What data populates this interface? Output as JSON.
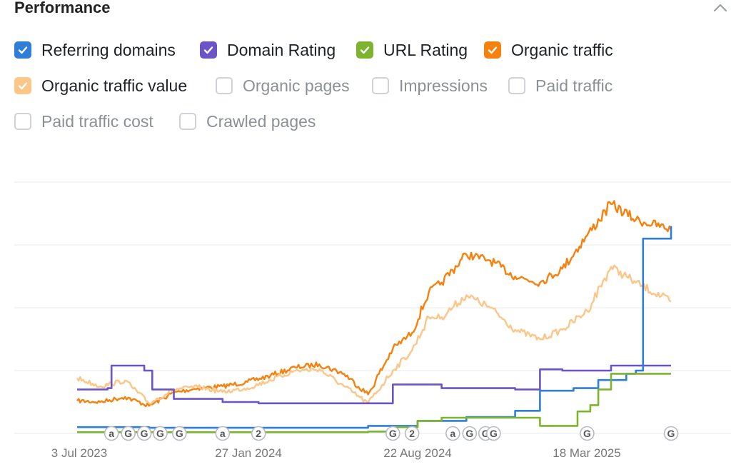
{
  "header": {
    "title": "Performance",
    "collapse_icon": "chevron-up-icon"
  },
  "legend": [
    {
      "label": "Referring domains",
      "checked": true,
      "color": "#2f7ed8"
    },
    {
      "label": "Domain Rating",
      "checked": true,
      "color": "#6b54c6"
    },
    {
      "label": "URL Rating",
      "checked": true,
      "color": "#7cb32f"
    },
    {
      "label": "Organic traffic",
      "checked": true,
      "color": "#f5820f"
    },
    {
      "label": "Organic traffic value",
      "checked": true,
      "color": "#fcc689"
    },
    {
      "label": "Organic pages",
      "checked": false,
      "color": "#cfd3d8"
    },
    {
      "label": "Impressions",
      "checked": false,
      "color": "#cfd3d8"
    },
    {
      "label": "Paid traffic",
      "checked": false,
      "color": "#cfd3d8"
    },
    {
      "label": "Paid traffic cost",
      "checked": false,
      "color": "#cfd3d8"
    },
    {
      "label": "Crawled pages",
      "checked": false,
      "color": "#cfd3d8"
    }
  ],
  "chart_data": {
    "type": "line",
    "grid": true,
    "x_tick_labels": [
      "3 Jul 2023",
      "27 Jan 2024",
      "22 Aug 2024",
      "18 Mar 2025"
    ],
    "x_range": [
      "2023-07-03",
      "2025-07-15"
    ],
    "y_range": [
      0,
      400
    ],
    "series": [
      {
        "name": "Organic traffic",
        "color": "#f5820f",
        "x": [
          "2023-07-03",
          "2023-08-01",
          "2023-09-01",
          "2023-10-01",
          "2023-11-01",
          "2023-12-01",
          "2024-01-01",
          "2024-02-01",
          "2024-03-01",
          "2024-04-01",
          "2024-05-01",
          "2024-06-01",
          "2024-07-01",
          "2024-08-01",
          "2024-08-25",
          "2024-09-15",
          "2024-10-01",
          "2024-11-01",
          "2024-12-01",
          "2025-01-01",
          "2025-02-01",
          "2025-03-01",
          "2025-04-01",
          "2025-05-01",
          "2025-06-01",
          "2025-07-15"
        ],
        "values": [
          52,
          50,
          58,
          44,
          65,
          72,
          75,
          82,
          92,
          105,
          110,
          95,
          62,
          135,
          160,
          225,
          240,
          285,
          275,
          250,
          240,
          262,
          315,
          365,
          340,
          325
        ]
      },
      {
        "name": "Organic traffic value",
        "color": "#fcc689",
        "x": [
          "2023-07-03",
          "2023-08-01",
          "2023-09-01",
          "2023-10-01",
          "2023-11-01",
          "2023-12-01",
          "2024-01-01",
          "2024-02-01",
          "2024-03-01",
          "2024-04-01",
          "2024-05-01",
          "2024-06-01",
          "2024-07-01",
          "2024-08-01",
          "2024-08-25",
          "2024-09-15",
          "2024-10-01",
          "2024-11-01",
          "2024-12-01",
          "2025-01-01",
          "2025-02-01",
          "2025-03-01",
          "2025-04-01",
          "2025-05-01",
          "2025-06-01",
          "2025-07-15"
        ],
        "values": [
          88,
          75,
          84,
          48,
          70,
          74,
          66,
          72,
          85,
          100,
          102,
          75,
          48,
          100,
          132,
          185,
          185,
          220,
          200,
          165,
          150,
          165,
          195,
          265,
          240,
          210
        ]
      },
      {
        "name": "Domain Rating",
        "color": "#6b54c6",
        "x": [
          "2023-07-03",
          "2023-08-10",
          "2023-08-15",
          "2023-09-25",
          "2023-10-05",
          "2023-11-01",
          "2024-01-01",
          "2024-02-15",
          "2024-05-01",
          "2024-07-25",
          "2024-08-01",
          "2024-10-01",
          "2025-01-01",
          "2025-02-01",
          "2025-03-01",
          "2025-05-01",
          "2025-07-15"
        ],
        "values": [
          70,
          72,
          108,
          100,
          70,
          55,
          50,
          48,
          48,
          48,
          78,
          72,
          70,
          102,
          100,
          108,
          108
        ]
      },
      {
        "name": "Referring domains",
        "color": "#2f7ed8",
        "x": [
          "2023-07-03",
          "2023-10-01",
          "2024-01-01",
          "2024-04-01",
          "2024-07-01",
          "2024-09-01",
          "2024-11-01",
          "2025-01-01",
          "2025-02-01",
          "2025-03-15",
          "2025-04-15",
          "2025-05-20",
          "2025-06-01",
          "2025-06-10",
          "2025-07-15"
        ],
        "values": [
          10,
          9,
          9,
          9,
          12,
          20,
          26,
          36,
          68,
          72,
          85,
          95,
          100,
          310,
          330
        ]
      },
      {
        "name": "URL Rating",
        "color": "#7cb32f",
        "x": [
          "2023-07-03",
          "2024-01-01",
          "2024-07-01",
          "2024-08-01",
          "2024-09-01",
          "2024-10-01",
          "2025-01-01",
          "2025-02-01",
          "2025-03-01",
          "2025-03-20",
          "2025-04-05",
          "2025-04-15",
          "2025-05-01",
          "2025-07-15"
        ],
        "values": [
          2,
          2,
          3,
          10,
          20,
          25,
          25,
          12,
          12,
          35,
          45,
          70,
          95,
          95
        ]
      }
    ],
    "annotations": [
      {
        "date": "2023-08-15",
        "label": "a"
      },
      {
        "date": "2023-09-05",
        "label": "G"
      },
      {
        "date": "2023-09-25",
        "label": "G"
      },
      {
        "date": "2023-10-15",
        "label": "G"
      },
      {
        "date": "2023-11-08",
        "label": "G"
      },
      {
        "date": "2024-01-01",
        "label": "a"
      },
      {
        "date": "2024-02-15",
        "label": "2"
      },
      {
        "date": "2024-08-01",
        "label": "G"
      },
      {
        "date": "2024-08-25",
        "label": "2"
      },
      {
        "date": "2024-10-15",
        "label": "a"
      },
      {
        "date": "2024-11-05",
        "label": "G"
      },
      {
        "date": "2024-11-25",
        "label": "G"
      },
      {
        "date": "2024-12-05",
        "label": "G"
      },
      {
        "date": "2025-04-01",
        "label": "G"
      },
      {
        "date": "2025-07-15",
        "label": "G"
      }
    ]
  }
}
